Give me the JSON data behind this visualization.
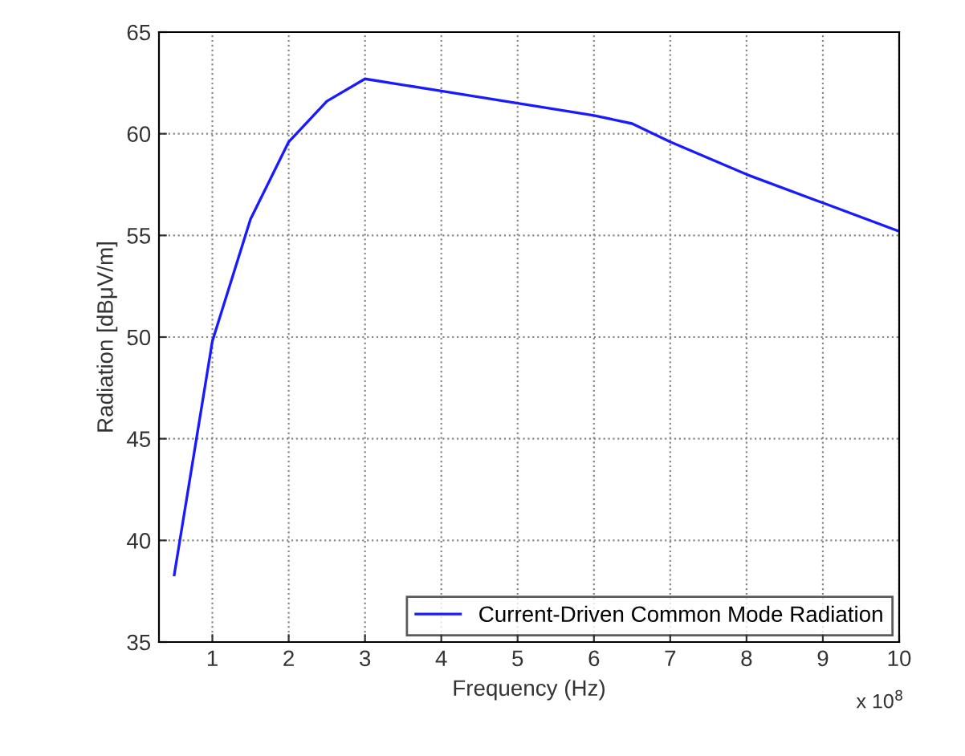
{
  "chart_data": {
    "type": "line",
    "xlabel": "Frequency (Hz)",
    "ylabel": "Radiation [dBμV/m]",
    "x": [
      0.5,
      1,
      1.5,
      2,
      2.5,
      3,
      4,
      5,
      6,
      6.5,
      7,
      8,
      9,
      10
    ],
    "series": [
      {
        "name": "Current-Driven Common Mode Radiation",
        "color": "#1a1aff",
        "values": [
          38.3,
          49.8,
          55.8,
          59.6,
          61.6,
          62.7,
          62.1,
          61.5,
          60.9,
          60.5,
          59.6,
          58.0,
          56.6,
          55.2
        ]
      }
    ],
    "xlim": [
      0.3,
      10
    ],
    "ylim": [
      35,
      65
    ],
    "xticks": [
      1,
      2,
      3,
      4,
      5,
      6,
      7,
      8,
      9,
      10
    ],
    "yticks": [
      35,
      40,
      45,
      50,
      55,
      60,
      65
    ],
    "annotations": [
      "x 10$^{8}$"
    ],
    "grid": true,
    "legend": "bottom right",
    "line_style": "solid",
    "marker": "none"
  }
}
